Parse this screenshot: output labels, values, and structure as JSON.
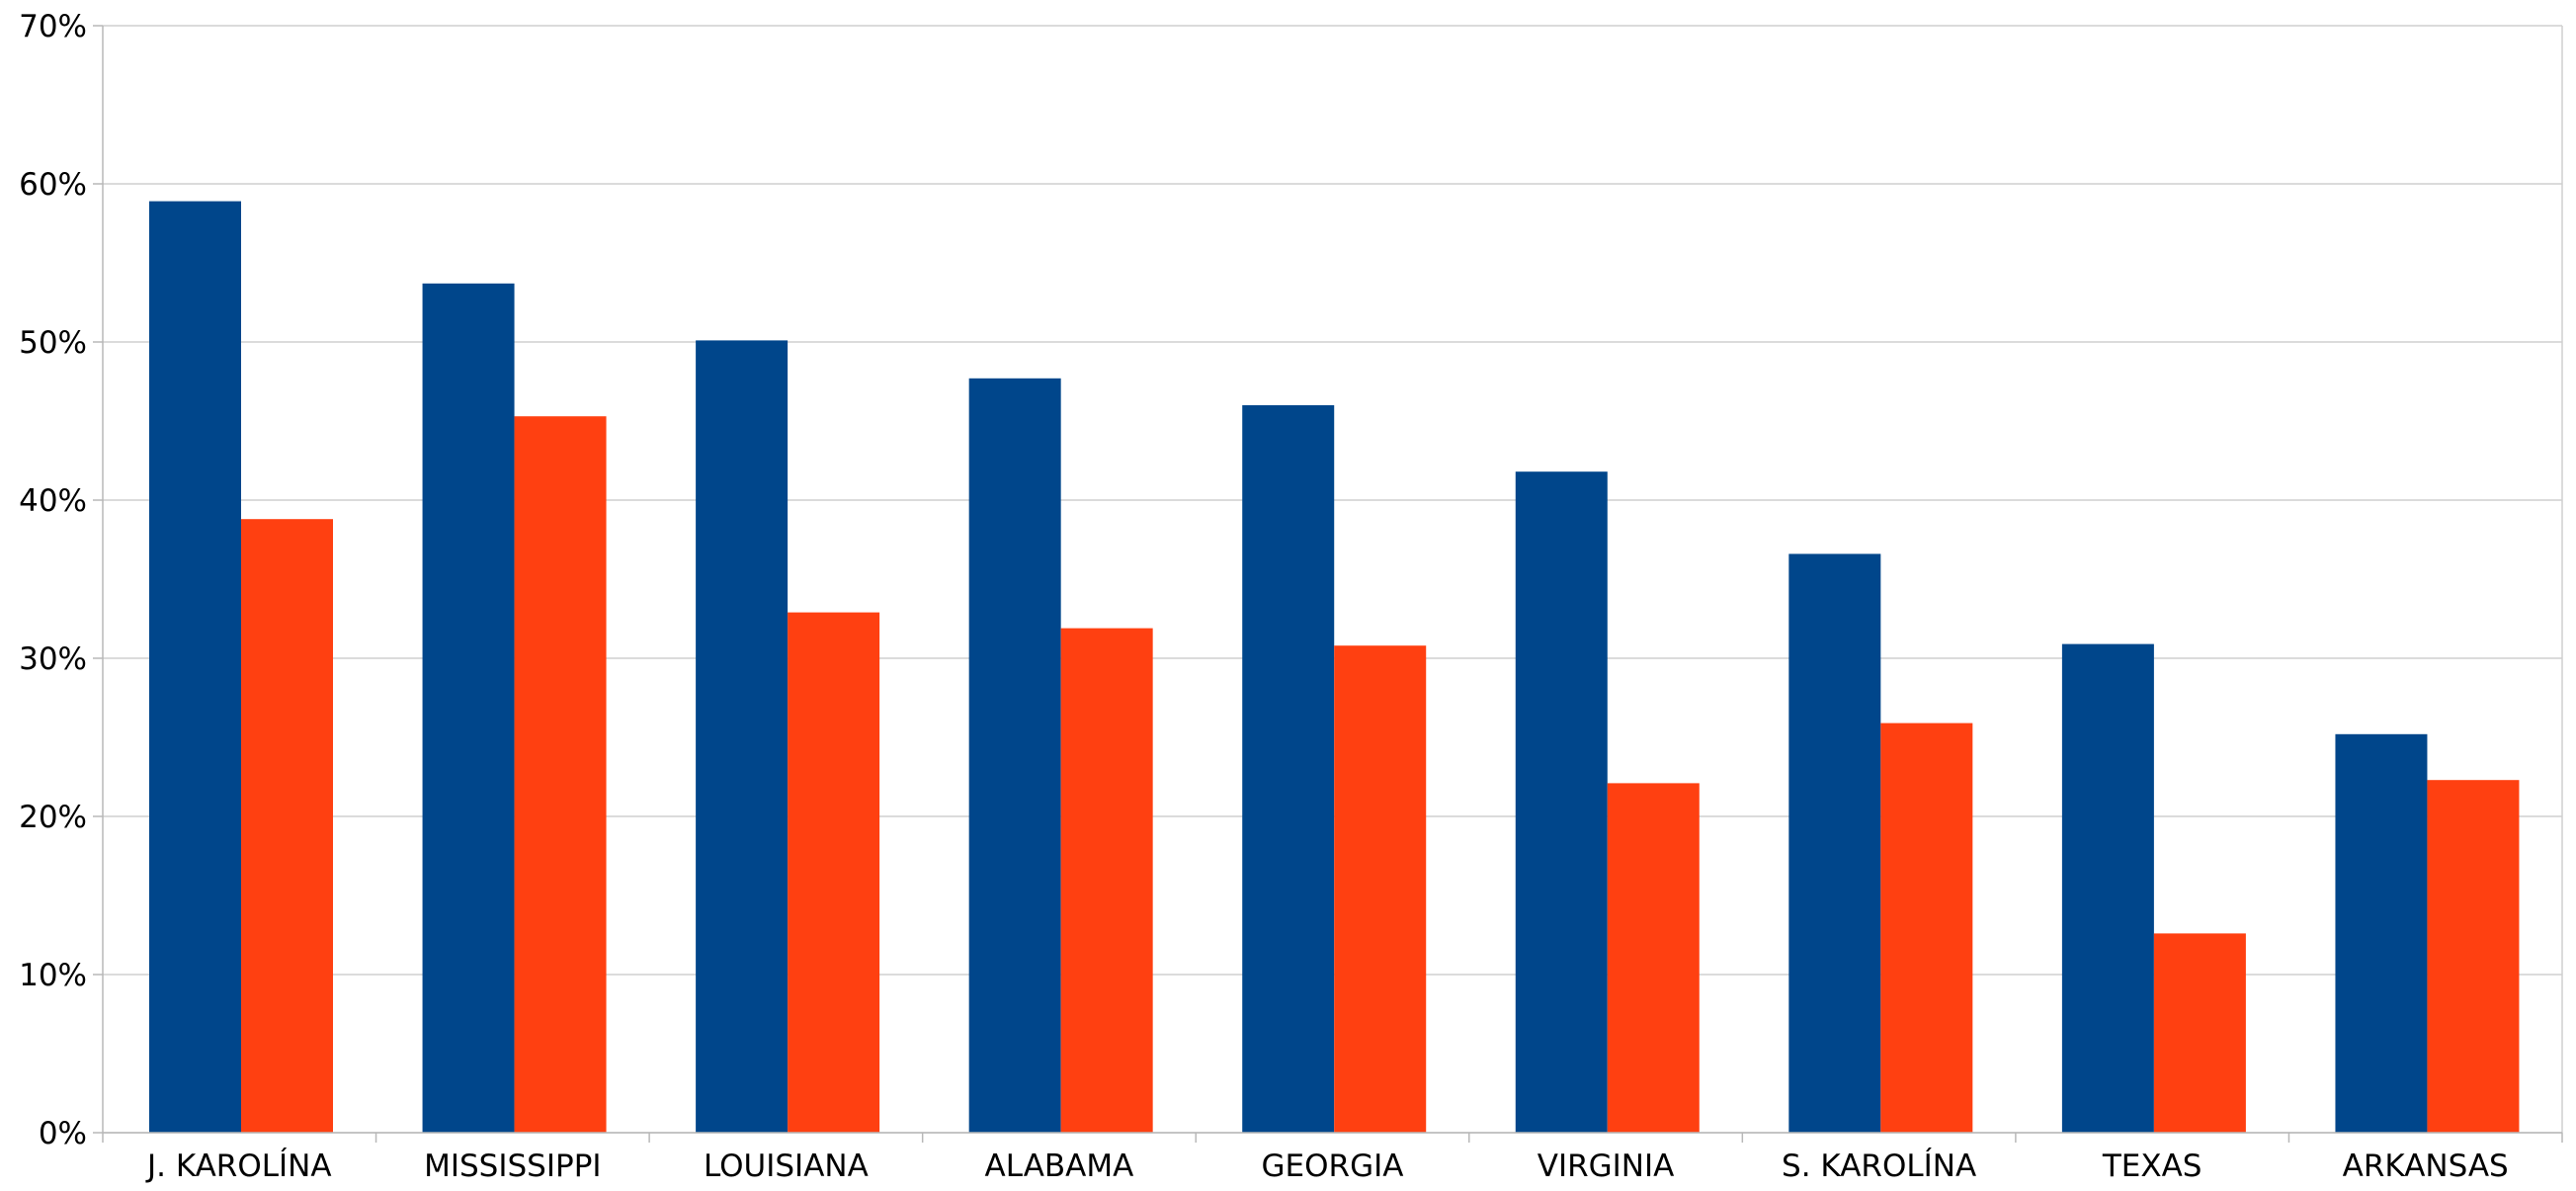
{
  "chart_data": {
    "type": "bar",
    "categories": [
      "J. KAROLÍNA",
      "MISSISSIPPI",
      "LOUISIANA",
      "ALABAMA",
      "GEORGIA",
      "VIRGINIA",
      "S. KAROLÍNA",
      "TEXAS",
      "ARKANSAS"
    ],
    "series": [
      {
        "values": [
          58.9,
          53.7,
          50.1,
          47.7,
          46.0,
          41.8,
          36.6,
          30.9,
          25.2
        ],
        "color": "#00468B"
      },
      {
        "values": [
          38.8,
          45.3,
          32.9,
          31.9,
          30.8,
          22.1,
          25.9,
          12.6,
          22.3
        ],
        "color": "#FF4011"
      }
    ],
    "ylim": [
      0,
      70
    ],
    "yticks": [
      0,
      10,
      20,
      30,
      40,
      50,
      60,
      70
    ],
    "ytick_suffix": "%",
    "grid": true,
    "title": "",
    "xlabel": "",
    "ylabel": ""
  }
}
